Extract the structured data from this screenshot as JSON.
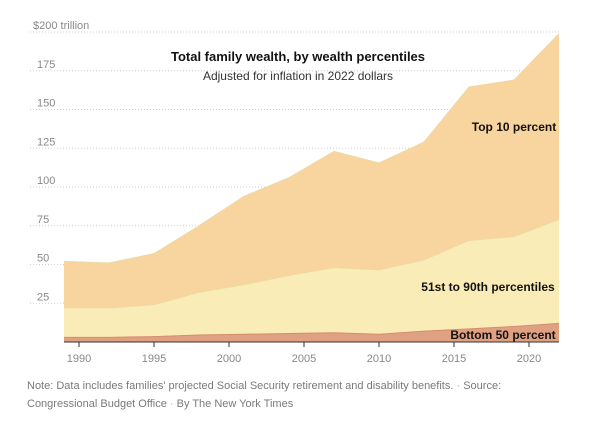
{
  "chart_data": {
    "type": "area",
    "stacked": true,
    "title": "Total family wealth, by wealth percentiles",
    "subtitle": "Adjusted for inflation in 2022 dollars",
    "y_unit_label": "$200 trillion",
    "ylim": [
      0,
      200
    ],
    "xlim": [
      1989,
      2022
    ],
    "y_ticks": [
      25,
      50,
      75,
      100,
      125,
      150,
      175
    ],
    "x_ticks": [
      1990,
      1995,
      2000,
      2005,
      2010,
      2015,
      2020
    ],
    "grid": "horizontal-dotted",
    "x": [
      1989,
      1992,
      1995,
      1998,
      2001,
      2004,
      2007,
      2010,
      2013,
      2016,
      2019,
      2022
    ],
    "series": [
      {
        "name": "Bottom 50 percent",
        "color": "#e0a183",
        "values": [
          3,
          3,
          3.5,
          4.5,
          5,
          5.5,
          6,
          5,
          7,
          8.5,
          10,
          12
        ]
      },
      {
        "name": "51st to 90th percentiles",
        "color": "#f9ecb6",
        "values": [
          19,
          19,
          20.5,
          27.5,
          32,
          37.5,
          42,
          41.5,
          46,
          57,
          58,
          67
        ]
      },
      {
        "name": "Top 10 percent",
        "color": "#f8d49f",
        "values": [
          30,
          29,
          33,
          43,
          57,
          63,
          75,
          69,
          76,
          99,
          101,
          120
        ]
      }
    ]
  },
  "note": {
    "text": "Note: Data includes families' projected Social Security retirement and disability benefits.",
    "sep": "·",
    "source": "Source: Congressional Budget Office",
    "byline": "By The New York Times"
  }
}
